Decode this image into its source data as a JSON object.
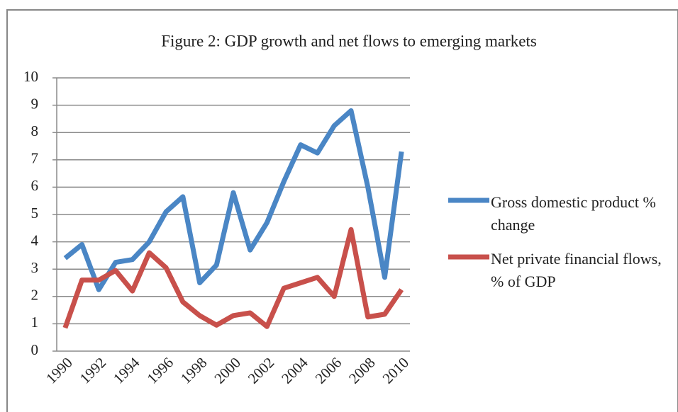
{
  "chart_data": {
    "type": "line",
    "title": "Figure 2: GDP growth and net flows to emerging markets",
    "categories": [
      "1990",
      null,
      "1992",
      null,
      "1994",
      null,
      "1996",
      null,
      "1998",
      null,
      "2000",
      null,
      "2002",
      null,
      "2004",
      null,
      "2006",
      null,
      "2008",
      null,
      "2010"
    ],
    "series": [
      {
        "name": "Gross domestic product % change",
        "color": "#4a86c5",
        "values": [
          3.4,
          3.9,
          2.25,
          3.25,
          3.35,
          4.0,
          5.1,
          5.65,
          2.5,
          3.15,
          5.8,
          3.7,
          4.7,
          6.2,
          7.55,
          7.25,
          8.25,
          8.8,
          6.0,
          2.7,
          7.3
        ]
      },
      {
        "name": "Net private financial flows, % of GDP",
        "color": "#c8504b",
        "values": [
          0.85,
          2.6,
          2.6,
          2.95,
          2.2,
          3.6,
          3.05,
          1.8,
          1.3,
          0.95,
          1.3,
          1.4,
          0.9,
          2.3,
          2.5,
          2.7,
          2.0,
          4.45,
          1.25,
          1.35,
          2.25
        ]
      }
    ],
    "ylim": [
      0,
      10
    ],
    "yticks": [
      0,
      1,
      2,
      3,
      4,
      5,
      6,
      7,
      8,
      9,
      10
    ],
    "grid": true,
    "legend": "right"
  }
}
